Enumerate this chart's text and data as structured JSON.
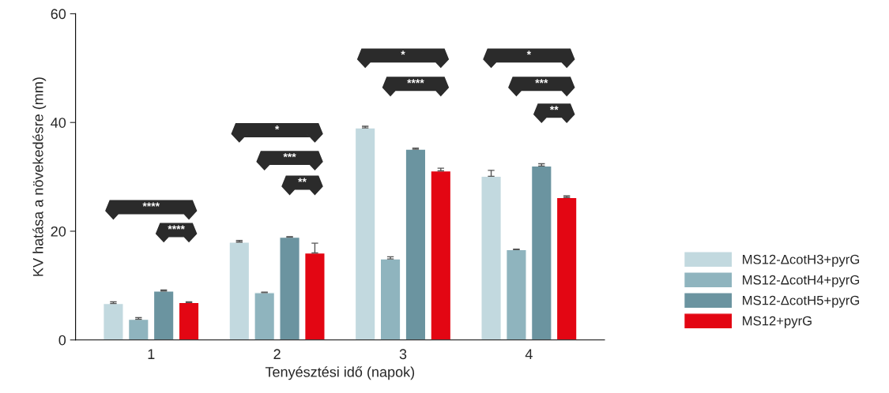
{
  "chart_data": {
    "type": "bar",
    "xlabel": "Tenyésztési idő (napok)",
    "ylabel": "KV hatása a növekedésre (mm)",
    "categories": [
      "1",
      "2",
      "3",
      "4"
    ],
    "series": [
      {
        "name": "MS12-ΔcotH3+pyrG",
        "color": "#c2d9df",
        "values": [
          6.7,
          18.0,
          39.0,
          30.1
        ],
        "errors": [
          [
            6.7,
            7.0
          ],
          [
            18.0,
            18.3
          ],
          [
            39.0,
            39.3
          ],
          [
            30.1,
            31.2
          ]
        ]
      },
      {
        "name": "MS12-ΔcotH4+pyrG",
        "color": "#8fb4be",
        "values": [
          3.8,
          8.7,
          14.9,
          16.6
        ],
        "errors": [
          [
            3.8,
            4.1
          ],
          [
            8.7,
            8.8
          ],
          [
            14.9,
            15.3
          ],
          [
            16.6,
            16.7
          ]
        ]
      },
      {
        "name": "MS12-ΔcotH5+pyrG",
        "color": "#6b94a0",
        "values": [
          9.0,
          18.9,
          35.1,
          32.0
        ],
        "errors": [
          [
            9.0,
            9.2
          ],
          [
            18.9,
            19.0
          ],
          [
            35.1,
            35.3
          ],
          [
            32.0,
            32.4
          ]
        ]
      },
      {
        "name": "MS12+pyrG",
        "color": "#e30613",
        "values": [
          6.9,
          16.0,
          31.1,
          26.2
        ],
        "errors": [
          [
            6.9,
            7.0
          ],
          [
            16.0,
            17.8
          ],
          [
            31.1,
            31.6
          ],
          [
            26.2,
            26.5
          ]
        ]
      }
    ],
    "ylim": [
      0,
      60
    ],
    "yticks": [
      0,
      20,
      40,
      60
    ],
    "grid": false,
    "legend": "right",
    "annotations": [
      "****",
      "****",
      "*",
      "***",
      "**",
      "*",
      "****",
      "*",
      "***",
      "**"
    ]
  }
}
